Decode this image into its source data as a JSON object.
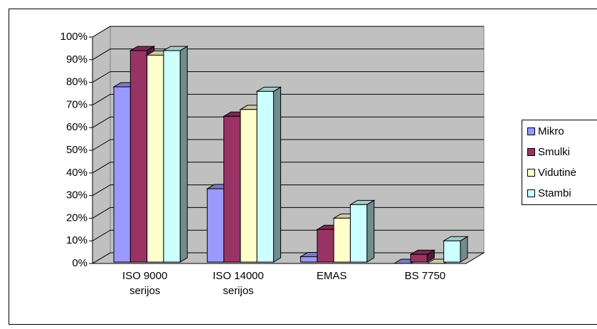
{
  "chart_data": {
    "type": "bar3d",
    "categories": [
      "ISO 9000 serijos",
      "ISO 14000 serijos",
      "EMAS",
      "BS 7750"
    ],
    "series": [
      {
        "name": "Mikro",
        "color": "#9999ff",
        "values": [
          78,
          33,
          3,
          0
        ]
      },
      {
        "name": "Smulki",
        "color": "#993366",
        "values": [
          94,
          65,
          15,
          4
        ]
      },
      {
        "name": "Vidutinė",
        "color": "#ffffcc",
        "values": [
          92,
          68,
          20,
          0
        ]
      },
      {
        "name": "Stambi",
        "color": "#ccffff",
        "values": [
          94,
          76,
          26,
          10
        ]
      }
    ],
    "ylim": [
      0,
      100
    ],
    "yticks": [
      {
        "value": 0,
        "label": "0%"
      },
      {
        "value": 10,
        "label": "10%"
      },
      {
        "value": 20,
        "label": "20%"
      },
      {
        "value": 30,
        "label": "30%"
      },
      {
        "value": 40,
        "label": "40%"
      },
      {
        "value": 50,
        "label": "50%"
      },
      {
        "value": 60,
        "label": "60%"
      },
      {
        "value": 70,
        "label": "70%"
      },
      {
        "value": 80,
        "label": "80%"
      },
      {
        "value": 90,
        "label": "90%"
      },
      {
        "value": 100,
        "label": "100%"
      }
    ],
    "grid": true,
    "legend": "right"
  }
}
